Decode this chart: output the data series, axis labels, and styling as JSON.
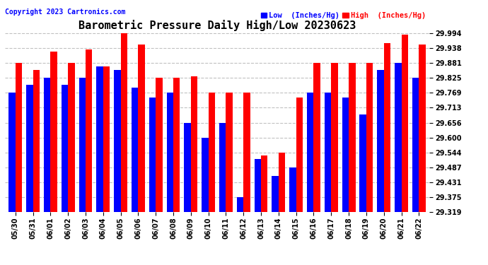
{
  "title": "Barometric Pressure Daily High/Low 20230623",
  "copyright": "Copyright 2023 Cartronics.com",
  "legend_low": "Low  (Inches/Hg)",
  "legend_high": "High  (Inches/Hg)",
  "dates": [
    "05/30",
    "05/31",
    "06/01",
    "06/02",
    "06/03",
    "06/04",
    "06/05",
    "06/06",
    "06/07",
    "06/08",
    "06/09",
    "06/10",
    "06/11",
    "06/12",
    "06/13",
    "06/14",
    "06/15",
    "06/16",
    "06/17",
    "06/18",
    "06/19",
    "06/20",
    "06/21",
    "06/22"
  ],
  "low_values": [
    29.769,
    29.8,
    29.825,
    29.8,
    29.825,
    29.869,
    29.856,
    29.788,
    29.75,
    29.769,
    29.656,
    29.6,
    29.656,
    29.375,
    29.519,
    29.456,
    29.487,
    29.769,
    29.769,
    29.75,
    29.688,
    29.856,
    29.881,
    29.825
  ],
  "high_values": [
    29.881,
    29.856,
    29.925,
    29.881,
    29.931,
    29.869,
    29.994,
    29.95,
    29.825,
    29.825,
    29.831,
    29.769,
    29.769,
    29.769,
    29.531,
    29.544,
    29.75,
    29.881,
    29.881,
    29.881,
    29.881,
    29.956,
    29.988,
    29.95
  ],
  "ylim_min": 29.319,
  "ylim_max": 29.994,
  "yticks": [
    29.319,
    29.375,
    29.431,
    29.487,
    29.544,
    29.6,
    29.656,
    29.713,
    29.769,
    29.825,
    29.881,
    29.938,
    29.994
  ],
  "bar_width": 0.38,
  "low_color": "#0000ff",
  "high_color": "#ff0000",
  "bg_color": "#ffffff",
  "grid_color": "#bbbbbb",
  "title_fontsize": 11,
  "tick_fontsize": 7,
  "copyright_fontsize": 7
}
